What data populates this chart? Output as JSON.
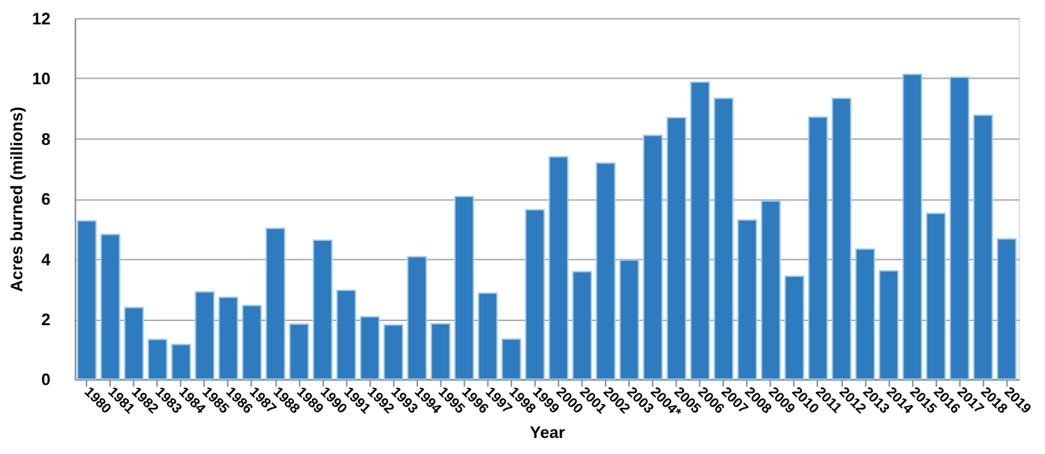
{
  "chart_data": {
    "type": "bar",
    "xlabel": "Year",
    "ylabel": "Acres burned (millions)",
    "categories": [
      "1980",
      "1981",
      "1982",
      "1983",
      "1984",
      "1985",
      "1986",
      "1987",
      "1988",
      "1989",
      "1990",
      "1991",
      "1992",
      "1993",
      "1994",
      "1995",
      "1996",
      "1997",
      "1998",
      "1999",
      "2000",
      "2001",
      "2002",
      "2003",
      "2004*",
      "2005",
      "2006",
      "2007",
      "2008",
      "2009",
      "2010",
      "2011",
      "2012",
      "2013",
      "2014",
      "2015",
      "2016",
      "2017",
      "2018",
      "2019"
    ],
    "values": [
      5.26,
      4.81,
      2.38,
      1.32,
      1.15,
      2.9,
      2.72,
      2.45,
      5.01,
      1.83,
      4.62,
      2.95,
      2.07,
      1.8,
      4.07,
      1.84,
      6.07,
      2.86,
      1.33,
      5.63,
      7.39,
      3.57,
      7.18,
      3.96,
      8.1,
      8.69,
      9.87,
      9.33,
      5.29,
      5.92,
      3.42,
      8.71,
      9.33,
      4.32,
      3.6,
      10.13,
      5.51,
      10.03,
      8.77,
      4.66
    ],
    "color": "#2e7bbf",
    "ylim": [
      0,
      12
    ],
    "yticks": [
      0,
      2,
      4,
      6,
      8,
      10,
      12
    ],
    "grid": "y"
  }
}
